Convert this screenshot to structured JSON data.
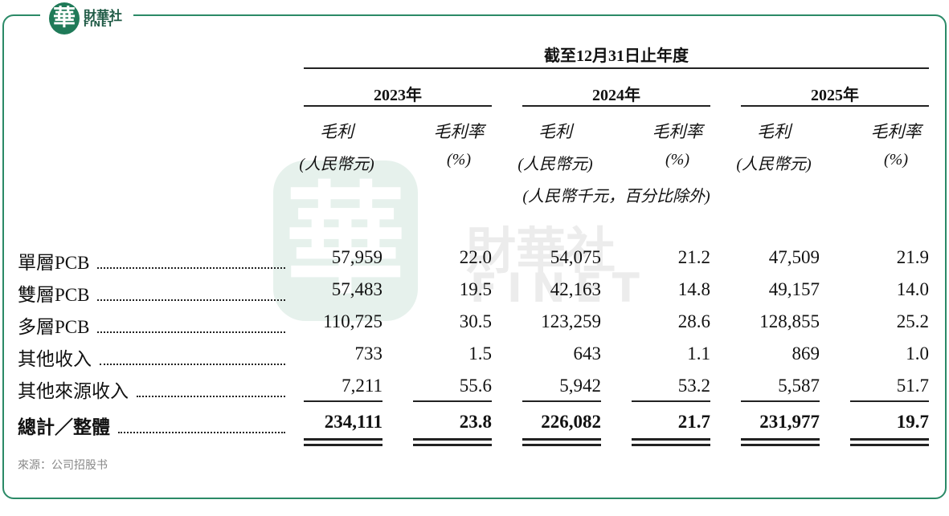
{
  "logo": {
    "mark": "華",
    "name": "財華社",
    "latin": "FINET"
  },
  "watermark": {
    "mark": "華",
    "name": "財華社",
    "latin": "FINET"
  },
  "table": {
    "period": "截至12月31日止年度",
    "years": [
      "2023年",
      "2024年",
      "2025年"
    ],
    "columns": [
      {
        "label": "毛利",
        "unit": "(人民幣元)"
      },
      {
        "label": "毛利率",
        "unit": "(%)"
      },
      {
        "label": "毛利",
        "unit": "(人民幣元)"
      },
      {
        "label": "毛利率",
        "unit": "(%)"
      },
      {
        "label": "毛利",
        "unit": "(人民幣元)"
      },
      {
        "label": "毛利率",
        "unit": "(%)"
      }
    ],
    "note": "(人民幣千元，百分比除外)",
    "rows": [
      {
        "label": "單層PCB",
        "values": [
          "57,959",
          "22.0",
          "54,075",
          "21.2",
          "47,509",
          "21.9"
        ]
      },
      {
        "label": "雙層PCB",
        "values": [
          "57,483",
          "19.5",
          "42,163",
          "14.8",
          "49,157",
          "14.0"
        ]
      },
      {
        "label": "多層PCB",
        "values": [
          "110,725",
          "30.5",
          "123,259",
          "28.6",
          "128,855",
          "25.2"
        ]
      },
      {
        "label": "其他收入",
        "values": [
          "733",
          "1.5",
          "643",
          "1.1",
          "869",
          "1.0"
        ]
      },
      {
        "label": "其他來源收入",
        "values": [
          "7,211",
          "55.6",
          "5,942",
          "53.2",
          "5,587",
          "51.7"
        ]
      }
    ],
    "total": {
      "label": "總計／整體",
      "values": [
        "234,111",
        "23.8",
        "226,082",
        "21.7",
        "231,977",
        "19.7"
      ]
    }
  },
  "source": "來源：公司招股书"
}
